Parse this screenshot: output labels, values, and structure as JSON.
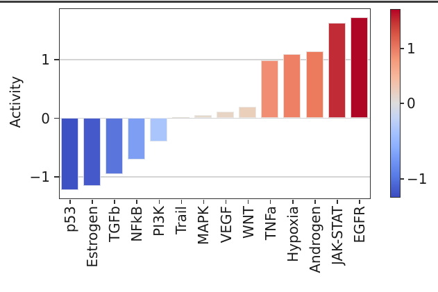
{
  "chart_data": {
    "type": "bar",
    "title": "",
    "xlabel": "",
    "ylabel": "Activity",
    "categories": [
      "p53",
      "Estrogen",
      "TGFb",
      "NFkB",
      "PI3K",
      "Trail",
      "MAPK",
      "VEGF",
      "WNT",
      "TNFa",
      "Hypoxia",
      "Androgen",
      "JAK-STAT",
      "EGFR"
    ],
    "values": [
      -1.24,
      -1.17,
      -0.96,
      -0.71,
      -0.4,
      0.01,
      0.05,
      0.11,
      0.19,
      0.98,
      1.09,
      1.14,
      1.62,
      1.72
    ],
    "bar_colors": [
      "#3d51c5",
      "#4559cb",
      "#5a75dc",
      "#7e9ef4",
      "#aac5fb",
      "#e4ddd6",
      "#e5d8cd",
      "#e7d4c4",
      "#ead0bb",
      "#f08d72",
      "#ee8165",
      "#ec7b5d",
      "#c02b35",
      "#b00626"
    ],
    "ylim": [
      -1.38,
      1.88
    ],
    "yticks": [
      {
        "label": "−1",
        "value": -1
      },
      {
        "label": "0",
        "value": 0
      },
      {
        "label": "1",
        "value": 1
      }
    ],
    "grid": true,
    "legend": "none",
    "colormap": "coolwarm",
    "colorbar": {
      "vmin": -1.25,
      "vcenter": 0,
      "vmax": 1.72,
      "ticks": [
        {
          "label": "1",
          "value": 1
        },
        {
          "label": "0",
          "value": 0
        },
        {
          "label": "−1",
          "value": -1
        }
      ]
    }
  }
}
